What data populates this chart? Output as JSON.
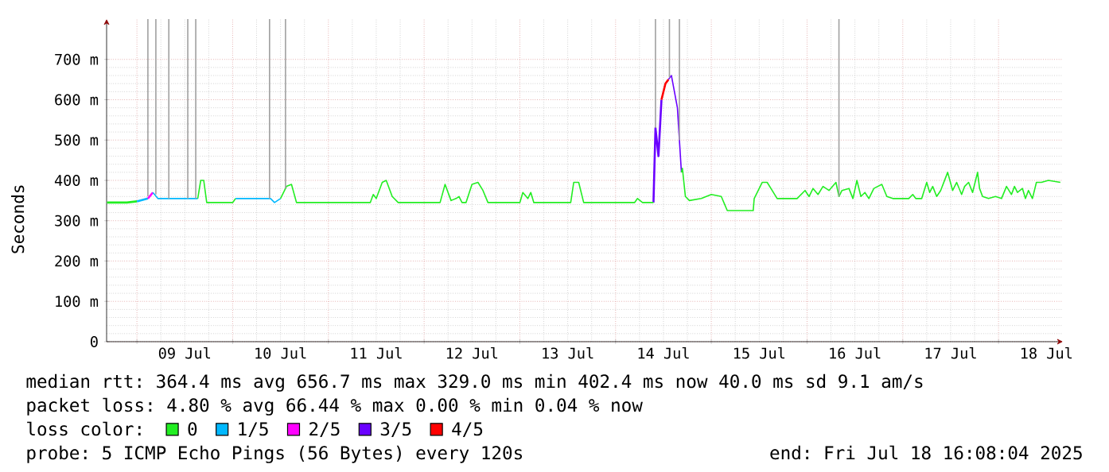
{
  "chart_data": {
    "type": "line",
    "ylabel": "Seconds",
    "legend_title": "loss color:",
    "legend": "bottom",
    "grid": true,
    "marker": "none",
    "line_style": "solid",
    "xlim": [
      "2025-07-08T16:24",
      "2025-07-18T16:08"
    ],
    "xticks": [
      {
        "value": "2025-07-09T00:00",
        "label": null
      },
      {
        "value": "2025-07-09T12:00",
        "label": "09 Jul"
      },
      {
        "value": "2025-07-10T00:00",
        "label": null
      },
      {
        "value": "2025-07-10T12:00",
        "label": "10 Jul"
      },
      {
        "value": "2025-07-11T00:00",
        "label": null
      },
      {
        "value": "2025-07-11T12:00",
        "label": "11 Jul"
      },
      {
        "value": "2025-07-12T00:00",
        "label": null
      },
      {
        "value": "2025-07-12T12:00",
        "label": "12 Jul"
      },
      {
        "value": "2025-07-13T00:00",
        "label": null
      },
      {
        "value": "2025-07-13T12:00",
        "label": "13 Jul"
      },
      {
        "value": "2025-07-14T00:00",
        "label": null
      },
      {
        "value": "2025-07-14T12:00",
        "label": "14 Jul"
      },
      {
        "value": "2025-07-15T00:00",
        "label": null
      },
      {
        "value": "2025-07-15T12:00",
        "label": "15 Jul"
      },
      {
        "value": "2025-07-16T00:00",
        "label": null
      },
      {
        "value": "2025-07-16T12:00",
        "label": "16 Jul"
      },
      {
        "value": "2025-07-17T00:00",
        "label": null
      },
      {
        "value": "2025-07-17T12:00",
        "label": "17 Jul"
      },
      {
        "value": "2025-07-18T00:00",
        "label": null
      },
      {
        "value": "2025-07-18T12:00",
        "label": "18 Jul"
      }
    ],
    "ylim": [
      0,
      800
    ],
    "yticks": [
      0,
      {
        "value": 100,
        "label": "100 m"
      },
      {
        "value": 200,
        "label": "200 m"
      },
      {
        "value": 300,
        "label": "300 m"
      },
      {
        "value": 400,
        "label": "400 m"
      },
      {
        "value": 500,
        "label": "500 m"
      },
      {
        "value": 600,
        "label": "600 m"
      },
      {
        "value": 700,
        "label": "700 m"
      }
    ],
    "series": [
      {
        "name": "0",
        "color": "#22ee22",
        "x": [
          "2025-07-08T16:30",
          "2025-07-08T21:30",
          "2025-07-09T00:00"
        ],
        "values": [
          345,
          345,
          348
        ]
      },
      {
        "name": "1/5",
        "color": "#00b8ff",
        "x": [
          "2025-07-09T00:00",
          "2025-07-09T02:45"
        ],
        "values": [
          348,
          355
        ]
      },
      {
        "name": "2/5",
        "color": "#ff00ff",
        "x": [
          "2025-07-09T02:45",
          "2025-07-09T04:00"
        ],
        "values": [
          355,
          370
        ]
      },
      {
        "name": "3/5",
        "color": "#6a00ff",
        "x": [
          "2025-07-14T09:30",
          "2025-07-14T10:00",
          "2025-07-14T10:45",
          "2025-07-14T11:30"
        ],
        "values": [
          345,
          530,
          460,
          600
        ]
      },
      {
        "name": "4/5",
        "color": "#ff0000",
        "x": [
          "2025-07-14T11:30",
          "2025-07-14T12:30",
          "2025-07-14T13:15"
        ],
        "values": [
          600,
          640,
          650
        ]
      },
      {
        "color": "#00b8ff",
        "x": [
          "2025-07-09T04:00",
          "2025-07-09T05:15",
          "2025-07-09T07:30",
          "2025-07-09T12:45",
          "2025-07-09T15:15"
        ],
        "values": [
          370,
          355,
          355,
          355,
          355
        ]
      },
      {
        "color": "#22ee22",
        "x": [
          "2025-07-09T15:15",
          "2025-07-09T16:00",
          "2025-07-09T16:45",
          "2025-07-09T17:30",
          "2025-07-10T00:00",
          "2025-07-10T00:45"
        ],
        "values": [
          355,
          400,
          400,
          345,
          345,
          355
        ]
      },
      {
        "color": "#00b8ff",
        "x": [
          "2025-07-10T00:45",
          "2025-07-10T09:30",
          "2025-07-10T10:30",
          "2025-07-10T12:00"
        ],
        "values": [
          355,
          355,
          345,
          355
        ]
      },
      {
        "color": "#22ee22",
        "x": [
          "2025-07-10T12:00",
          "2025-07-10T13:30",
          "2025-07-10T14:45",
          "2025-07-10T16:00",
          "2025-07-11T10:30",
          "2025-07-11T11:15",
          "2025-07-11T12:00",
          "2025-07-11T13:30",
          "2025-07-11T14:30",
          "2025-07-11T16:00",
          "2025-07-11T17:30",
          "2025-07-12T04:00",
          "2025-07-12T05:15",
          "2025-07-12T06:45",
          "2025-07-12T08:00",
          "2025-07-12T08:45",
          "2025-07-12T09:30",
          "2025-07-12T10:30",
          "2025-07-12T12:00",
          "2025-07-12T13:30",
          "2025-07-12T14:45",
          "2025-07-12T16:00",
          "2025-07-13T00:00",
          "2025-07-13T00:45",
          "2025-07-13T02:00",
          "2025-07-13T02:45",
          "2025-07-13T03:30",
          "2025-07-13T12:45",
          "2025-07-13T13:30",
          "2025-07-13T14:45",
          "2025-07-13T16:00",
          "2025-07-14T04:45",
          "2025-07-14T05:30",
          "2025-07-14T06:45",
          "2025-07-14T09:30"
        ],
        "values": [
          355,
          385,
          390,
          345,
          345,
          365,
          355,
          395,
          400,
          360,
          345,
          345,
          390,
          350,
          355,
          360,
          345,
          345,
          390,
          395,
          375,
          345,
          345,
          370,
          355,
          370,
          345,
          345,
          395,
          395,
          345,
          345,
          355,
          345,
          345
        ]
      },
      {
        "color": "#6a00ff",
        "x": [
          "2025-07-14T13:15",
          "2025-07-14T14:00",
          "2025-07-14T14:45",
          "2025-07-14T15:30",
          "2025-07-14T16:30"
        ],
        "values": [
          650,
          660,
          620,
          580,
          420
        ]
      },
      {
        "color": "#22ee22",
        "x": [
          "2025-07-14T16:30",
          "2025-07-14T16:45",
          "2025-07-14T17:30",
          "2025-07-14T18:30",
          "2025-07-14T21:30",
          "2025-07-15T00:00",
          "2025-07-15T02:30",
          "2025-07-15T04:00",
          "2025-07-15T10:30",
          "2025-07-15T10:45",
          "2025-07-15T12:45",
          "2025-07-15T14:00",
          "2025-07-15T15:15",
          "2025-07-15T16:30",
          "2025-07-15T21:30",
          "2025-07-15T23:30",
          "2025-07-16T00:30",
          "2025-07-16T01:30",
          "2025-07-16T02:45",
          "2025-07-16T04:00",
          "2025-07-16T05:30",
          "2025-07-16T07:15",
          "2025-07-16T08:00",
          "2025-07-16T08:45",
          "2025-07-16T10:30",
          "2025-07-16T11:30",
          "2025-07-16T12:30",
          "2025-07-16T13:30",
          "2025-07-16T14:30",
          "2025-07-16T15:30",
          "2025-07-16T16:45",
          "2025-07-16T18:45",
          "2025-07-16T20:00",
          "2025-07-16T21:30",
          "2025-07-17T01:30",
          "2025-07-17T02:30",
          "2025-07-17T03:15",
          "2025-07-17T04:45",
          "2025-07-17T06:00",
          "2025-07-17T06:45",
          "2025-07-17T07:30",
          "2025-07-17T08:30",
          "2025-07-17T09:30",
          "2025-07-17T11:15",
          "2025-07-17T12:30",
          "2025-07-17T13:30",
          "2025-07-17T14:45",
          "2025-07-17T15:30",
          "2025-07-17T16:30",
          "2025-07-17T17:30",
          "2025-07-17T18:45",
          "2025-07-17T19:15",
          "2025-07-17T20:00",
          "2025-07-17T21:30",
          "2025-07-17T23:15",
          "2025-07-18T00:45",
          "2025-07-18T02:00",
          "2025-07-18T03:15",
          "2025-07-18T04:00",
          "2025-07-18T04:45",
          "2025-07-18T06:00",
          "2025-07-18T06:45",
          "2025-07-18T07:30",
          "2025-07-18T08:30",
          "2025-07-18T09:30",
          "2025-07-18T10:45",
          "2025-07-18T12:30",
          "2025-07-18T15:30"
        ],
        "values": [
          420,
          430,
          360,
          350,
          355,
          365,
          360,
          325,
          325,
          355,
          395,
          395,
          375,
          355,
          355,
          375,
          360,
          380,
          365,
          385,
          375,
          395,
          360,
          375,
          380,
          355,
          400,
          360,
          370,
          355,
          380,
          390,
          360,
          355,
          355,
          365,
          355,
          355,
          395,
          370,
          385,
          360,
          375,
          420,
          375,
          395,
          365,
          385,
          395,
          370,
          420,
          380,
          360,
          355,
          360,
          355,
          385,
          365,
          385,
          370,
          380,
          355,
          375,
          355,
          395,
          395,
          400,
          395
        ]
      },
      {
        "color": "#a0a0a0",
        "x": [
          "2025-07-09T02:45",
          "2025-07-09T02:45"
        ],
        "values": [
          360,
          800
        ]
      },
      {
        "color": "#a0a0a0",
        "x": [
          "2025-07-09T04:45",
          "2025-07-09T04:45"
        ],
        "values": [
          365,
          800
        ]
      },
      {
        "color": "#a0a0a0",
        "x": [
          "2025-07-09T08:00",
          "2025-07-09T08:00"
        ],
        "values": [
          355,
          800
        ]
      },
      {
        "color": "#a0a0a0",
        "x": [
          "2025-07-09T12:45",
          "2025-07-09T12:45"
        ],
        "values": [
          355,
          800
        ]
      },
      {
        "color": "#a0a0a0",
        "x": [
          "2025-07-09T14:45",
          "2025-07-09T14:45"
        ],
        "values": [
          355,
          800
        ]
      },
      {
        "color": "#a0a0a0",
        "x": [
          "2025-07-10T09:15",
          "2025-07-10T09:15"
        ],
        "values": [
          355,
          800
        ]
      },
      {
        "color": "#a0a0a0",
        "x": [
          "2025-07-10T13:15",
          "2025-07-10T13:15"
        ],
        "values": [
          380,
          800
        ]
      },
      {
        "color": "#a0a0a0",
        "x": [
          "2025-07-14T10:00",
          "2025-07-14T10:00"
        ],
        "values": [
          530,
          800
        ]
      },
      {
        "color": "#a0a0a0",
        "x": [
          "2025-07-14T13:30",
          "2025-07-14T13:30"
        ],
        "values": [
          655,
          800
        ]
      },
      {
        "color": "#a0a0a0",
        "x": [
          "2025-07-14T16:00",
          "2025-07-14T16:00"
        ],
        "values": [
          500,
          800
        ]
      },
      {
        "color": "#a0a0a0",
        "x": [
          "2025-07-16T08:00",
          "2025-07-16T08:00"
        ],
        "values": [
          360,
          800
        ]
      }
    ],
    "annotations": [
      "median rtt:  364.4 ms avg  656.7 ms max  329.0 ms min  402.4 ms now  40.0 ms sd  9.1   am/s",
      "packet loss: 4.80 % avg  66.44 % max  0.00 % min  0.04 % now",
      "probe:       5 ICMP Echo Pings (56 Bytes) every 120s",
      "end: Fri Jul 18 16:08:04 2025"
    ]
  }
}
